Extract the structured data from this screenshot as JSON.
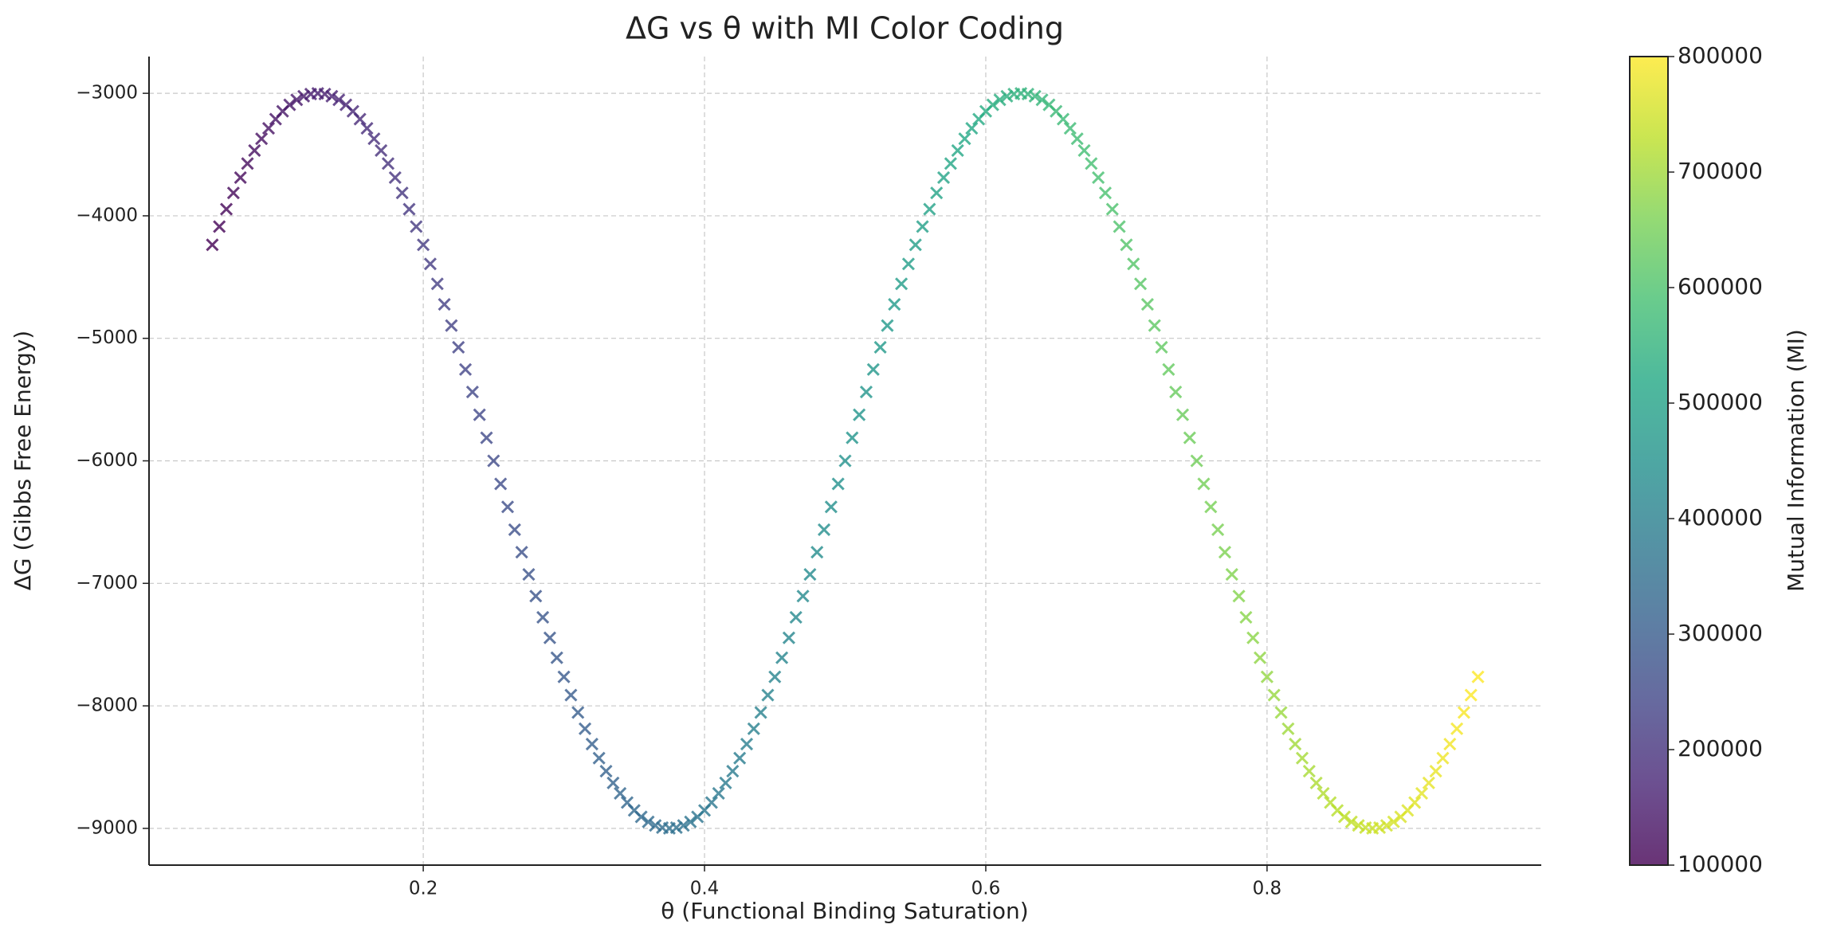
{
  "chart_data": {
    "type": "scatter",
    "title": "ΔG vs θ with MI Color Coding",
    "x_label": "θ (Functional Binding Saturation)",
    "y_label": "ΔG (Gibbs Free Energy)",
    "colorbar_label": "Mutual Information (MI)",
    "colormap": "viridis",
    "marker": "x",
    "grid": true,
    "xlim": [
      0.005,
      0.995
    ],
    "xticks": [
      0.2,
      0.4,
      0.6,
      0.8
    ],
    "ylim": [
      -9300,
      -2700
    ],
    "yticks": [
      {
        "value": -9000,
        "label": "−9000"
      },
      {
        "value": -8000,
        "label": "−8000"
      },
      {
        "value": -7000,
        "label": "−7000"
      },
      {
        "value": -6000,
        "label": "−6000"
      },
      {
        "value": -5000,
        "label": "−5000"
      },
      {
        "value": -4000,
        "label": "−4000"
      },
      {
        "value": -3000,
        "label": "−3000"
      }
    ],
    "clim": [
      100000,
      800000
    ],
    "cticks": [
      100000,
      200000,
      300000,
      400000,
      500000,
      600000,
      700000,
      800000
    ],
    "x": [
      0.05,
      0.055,
      0.06,
      0.065,
      0.07,
      0.075,
      0.08,
      0.085,
      0.09,
      0.095,
      0.1,
      0.105,
      0.11,
      0.115,
      0.12,
      0.125,
      0.13,
      0.135,
      0.14,
      0.145,
      0.15,
      0.155,
      0.16,
      0.165,
      0.17,
      0.175,
      0.18,
      0.185,
      0.19,
      0.195,
      0.2,
      0.205,
      0.21,
      0.215,
      0.22,
      0.225,
      0.23,
      0.235,
      0.24,
      0.245,
      0.25,
      0.255,
      0.26,
      0.265,
      0.27,
      0.275,
      0.28,
      0.285,
      0.29,
      0.295,
      0.3,
      0.305,
      0.31,
      0.315,
      0.32,
      0.325,
      0.33,
      0.335,
      0.34,
      0.345,
      0.35,
      0.355,
      0.36,
      0.365,
      0.37,
      0.375,
      0.38,
      0.385,
      0.39,
      0.395,
      0.4,
      0.405,
      0.41,
      0.415,
      0.42,
      0.425,
      0.43,
      0.435,
      0.44,
      0.445,
      0.45,
      0.455,
      0.46,
      0.465,
      0.47,
      0.475,
      0.48,
      0.485,
      0.49,
      0.495,
      0.5,
      0.505,
      0.51,
      0.515,
      0.52,
      0.525,
      0.53,
      0.535,
      0.54,
      0.545,
      0.55,
      0.555,
      0.56,
      0.565,
      0.57,
      0.575,
      0.58,
      0.585,
      0.59,
      0.595,
      0.6,
      0.605,
      0.61,
      0.615,
      0.62,
      0.625,
      0.63,
      0.635,
      0.64,
      0.645,
      0.65,
      0.655,
      0.66,
      0.665,
      0.67,
      0.675,
      0.68,
      0.685,
      0.69,
      0.695,
      0.7,
      0.705,
      0.71,
      0.715,
      0.72,
      0.725,
      0.73,
      0.735,
      0.74,
      0.745,
      0.75,
      0.755,
      0.76,
      0.765,
      0.77,
      0.775,
      0.78,
      0.785,
      0.79,
      0.795,
      0.8,
      0.805,
      0.81,
      0.815,
      0.82,
      0.825,
      0.83,
      0.835,
      0.84,
      0.845,
      0.85,
      0.855,
      0.86,
      0.865,
      0.87,
      0.875,
      0.88,
      0.885,
      0.89,
      0.895,
      0.9,
      0.905,
      0.91,
      0.915,
      0.92,
      0.925,
      0.93,
      0.935,
      0.94,
      0.945,
      0.95
    ],
    "values": [
      -4237,
      -4088,
      -3946,
      -3813,
      -3688,
      -3573,
      -3467,
      -3371,
      -3286,
      -3211,
      -3147,
      -3094,
      -3053,
      -3024,
      -3006,
      -3000,
      -3006,
      -3024,
      -3053,
      -3094,
      -3147,
      -3211,
      -3286,
      -3371,
      -3467,
      -3573,
      -3688,
      -3813,
      -3946,
      -4088,
      -4237,
      -4393,
      -4555,
      -4723,
      -4896,
      -5073,
      -5254,
      -5438,
      -5624,
      -5812,
      -6000,
      -6188,
      -6376,
      -6562,
      -6746,
      -6927,
      -7104,
      -7277,
      -7445,
      -7607,
      -7763,
      -7912,
      -8054,
      -8187,
      -8312,
      -8427,
      -8533,
      -8629,
      -8714,
      -8789,
      -8853,
      -8906,
      -8947,
      -8976,
      -8994,
      -9000,
      -8994,
      -8976,
      -8947,
      -8906,
      -8853,
      -8789,
      -8714,
      -8629,
      -8533,
      -8427,
      -8312,
      -8187,
      -8054,
      -7912,
      -7763,
      -7607,
      -7445,
      -7277,
      -7104,
      -6927,
      -6746,
      -6562,
      -6376,
      -6188,
      -6000,
      -5812,
      -5624,
      -5438,
      -5254,
      -5073,
      -4896,
      -4723,
      -4555,
      -4393,
      -4237,
      -4088,
      -3946,
      -3813,
      -3688,
      -3573,
      -3467,
      -3371,
      -3286,
      -3211,
      -3147,
      -3094,
      -3053,
      -3024,
      -3006,
      -3000,
      -3006,
      -3024,
      -3053,
      -3094,
      -3147,
      -3211,
      -3286,
      -3371,
      -3467,
      -3573,
      -3688,
      -3813,
      -3946,
      -4088,
      -4237,
      -4393,
      -4555,
      -4723,
      -4896,
      -5073,
      -5254,
      -5438,
      -5624,
      -5812,
      -6000,
      -6188,
      -6376,
      -6562,
      -6746,
      -6927,
      -7104,
      -7277,
      -7445,
      -7607,
      -7763,
      -7912,
      -8054,
      -8187,
      -8312,
      -8427,
      -8533,
      -8629,
      -8714,
      -8789,
      -8853,
      -8906,
      -8947,
      -8976,
      -8994,
      -9000,
      -8994,
      -8976,
      -8947,
      -8906,
      -8853,
      -8789,
      -8714,
      -8629,
      -8533,
      -8427,
      -8312,
      -8187,
      -8054,
      -7912,
      -7763
    ],
    "color_values": [
      100000,
      103900,
      107800,
      111700,
      115600,
      119500,
      123400,
      127300,
      131200,
      135100,
      139000,
      142900,
      146800,
      150700,
      154600,
      158500,
      162400,
      166300,
      170200,
      174100,
      178000,
      181900,
      185800,
      189700,
      193600,
      197500,
      201400,
      205300,
      209200,
      213100,
      217000,
      220900,
      224800,
      228700,
      232600,
      236500,
      240400,
      244300,
      248200,
      252100,
      256000,
      259900,
      263800,
      267700,
      271600,
      275500,
      279400,
      283300,
      287200,
      291100,
      295000,
      298900,
      302800,
      306700,
      310600,
      314500,
      318400,
      322300,
      326200,
      330100,
      334000,
      337900,
      341800,
      345700,
      349600,
      353500,
      357400,
      361300,
      365200,
      369100,
      373000,
      376900,
      380800,
      384700,
      388600,
      392500,
      396400,
      400300,
      404200,
      408100,
      412000,
      415900,
      419800,
      423700,
      427600,
      431500,
      435400,
      439300,
      443200,
      447100,
      451000,
      454900,
      458800,
      462700,
      466600,
      470500,
      474400,
      478300,
      482200,
      486100,
      490000,
      493900,
      497800,
      501700,
      505600,
      509500,
      513400,
      517300,
      521200,
      525100,
      529000,
      532900,
      536800,
      540700,
      544600,
      548500,
      552400,
      556300,
      560200,
      564100,
      568000,
      571900,
      575800,
      579700,
      583600,
      587500,
      591400,
      595300,
      599200,
      603100,
      607000,
      610900,
      614800,
      618700,
      622600,
      626500,
      630400,
      634300,
      638200,
      642100,
      646000,
      649900,
      653800,
      657700,
      661600,
      665500,
      669400,
      673300,
      677200,
      681100,
      685000,
      688900,
      692800,
      696700,
      700600,
      704500,
      708400,
      712300,
      716200,
      720100,
      724000,
      727900,
      731800,
      735700,
      739600,
      743500,
      747400,
      751300,
      755200,
      759100,
      763000,
      766900,
      770800,
      774700,
      778600,
      782500,
      786400,
      790300,
      794200,
      798100,
      800000
    ]
  }
}
